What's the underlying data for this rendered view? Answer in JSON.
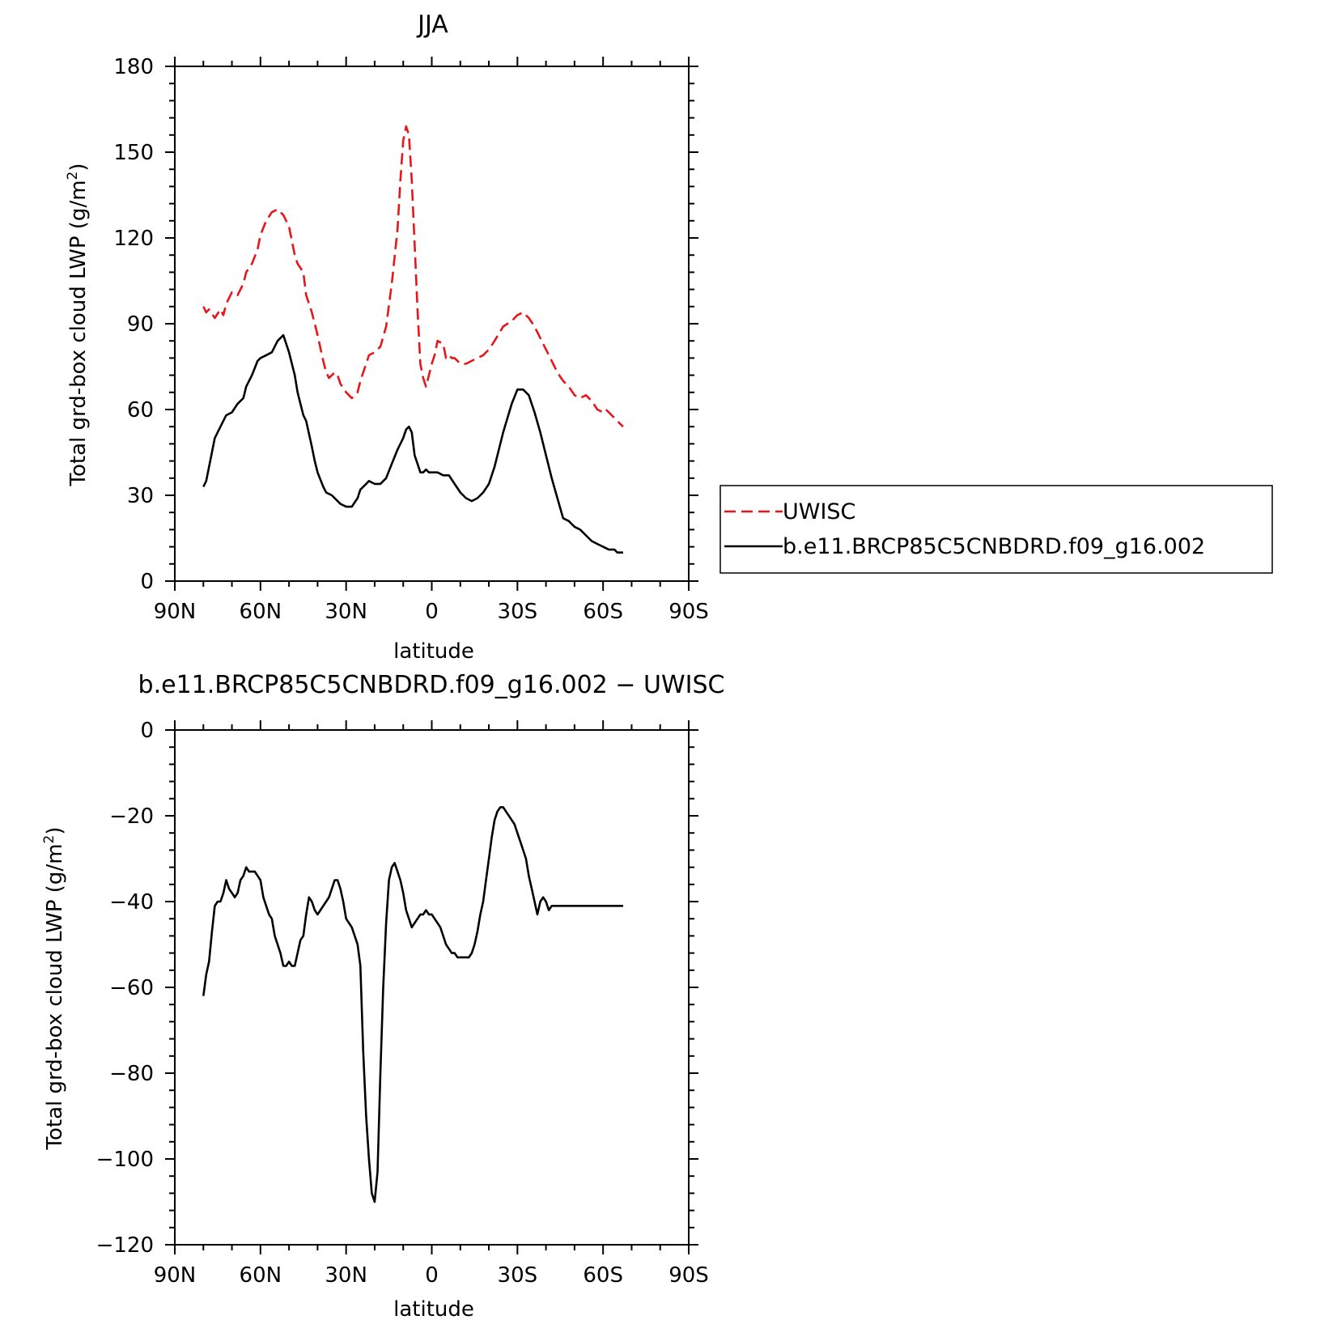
{
  "chart_data": [
    {
      "type": "line",
      "title": "JJA",
      "xlabel": "latitude",
      "ylabel": "Total grd-box cloud LWP (g/m²)",
      "xlim": [
        90,
        -90
      ],
      "ylim": [
        0,
        180
      ],
      "xticks": [
        90,
        60,
        30,
        0,
        -30,
        -60,
        -90
      ],
      "xtick_labels": [
        "90N",
        "60N",
        "30N",
        "0",
        "30S",
        "60S",
        "90S"
      ],
      "yticks": [
        0,
        30,
        60,
        90,
        120,
        150,
        180
      ],
      "ytick_labels": [
        "0",
        "30",
        "60",
        "90",
        "120",
        "150",
        "180"
      ],
      "legend_position": "right",
      "series": [
        {
          "name": "UWISC",
          "color": "#e8161b",
          "dash": "dashed",
          "x": [
            80,
            79,
            78,
            76,
            74,
            73,
            72,
            70,
            68,
            66,
            65,
            63,
            61,
            60,
            58,
            56,
            54,
            52,
            50,
            48,
            47,
            45,
            44,
            42,
            41,
            40,
            38,
            37,
            36,
            34,
            33,
            32,
            30,
            28,
            26,
            25,
            23,
            22,
            20,
            18,
            16,
            14,
            12,
            11,
            10,
            9,
            8,
            7,
            6,
            5,
            4,
            3,
            2,
            1,
            0,
            -1,
            -2,
            -4,
            -5,
            -6,
            -7,
            -8,
            -9,
            -10,
            -11,
            -12,
            -14,
            -16,
            -18,
            -20,
            -22,
            -25,
            -28,
            -30,
            -32,
            -34,
            -36,
            -38,
            -40,
            -42,
            -44,
            -46,
            -48,
            -50,
            -52,
            -54,
            -56,
            -58,
            -60,
            -61,
            -63,
            -64,
            -65,
            -66,
            -67
          ],
          "y": [
            96,
            94,
            95,
            92,
            95,
            93,
            97,
            101,
            100,
            104,
            108,
            111,
            116,
            121,
            126,
            129,
            130,
            128,
            124,
            114,
            111,
            108,
            100,
            94,
            90,
            86,
            77,
            73,
            71,
            73,
            72,
            69,
            66,
            64,
            66,
            70,
            76,
            79,
            80,
            82,
            89,
            104,
            123,
            140,
            154,
            159,
            156,
            140,
            118,
            95,
            76,
            71,
            68,
            72,
            76,
            79,
            84,
            83,
            78,
            79,
            78,
            78,
            77,
            76,
            76,
            76,
            77,
            78,
            79,
            81,
            84,
            89,
            91,
            93,
            94,
            92,
            89,
            85,
            81,
            77,
            73,
            70,
            68,
            65,
            64,
            65,
            63,
            60,
            59,
            60,
            58,
            57,
            56,
            55,
            54
          ],
          "_note": ""
        },
        {
          "name": "b.e11.BRCP85C5CNBDRD.f09_g16.002",
          "color": "#000000",
          "dash": "solid",
          "x": [
            80,
            79,
            78,
            76,
            74,
            72,
            70,
            68,
            66,
            65,
            63,
            61,
            60,
            58,
            56,
            54,
            52,
            51,
            50,
            48,
            47,
            45,
            44,
            42,
            41,
            40,
            38,
            37,
            35,
            33,
            32,
            30,
            28,
            26,
            25,
            23,
            22,
            20,
            18,
            16,
            14,
            12,
            11,
            10,
            9,
            8,
            7,
            6,
            5,
            4,
            3,
            2,
            1,
            0,
            -2,
            -4,
            -5,
            -6,
            -8,
            -10,
            -12,
            -14,
            -16,
            -18,
            -20,
            -22,
            -25,
            -28,
            -30,
            -32,
            -34,
            -36,
            -38,
            -40,
            -42,
            -44,
            -46,
            -48,
            -50,
            -52,
            -54,
            -56,
            -58,
            -60,
            -62,
            -63,
            -64,
            -65,
            -66,
            -67
          ],
          "y": [
            33,
            35,
            40,
            50,
            54,
            58,
            59,
            62,
            64,
            68,
            72,
            77,
            78,
            79,
            80,
            84,
            86,
            83,
            80,
            72,
            66,
            58,
            56,
            47,
            42,
            38,
            33,
            31,
            30,
            28,
            27,
            26,
            26,
            29,
            32,
            34,
            35,
            34,
            34,
            36,
            41,
            46,
            48,
            50,
            53,
            54,
            52,
            44,
            41,
            38,
            38,
            39,
            38,
            38,
            38,
            37,
            37,
            37,
            34,
            31,
            29,
            28,
            29,
            31,
            34,
            40,
            52,
            62,
            67,
            67,
            65,
            59,
            52,
            44,
            36,
            29,
            22,
            21,
            19,
            18,
            16,
            14,
            13,
            12,
            11,
            11,
            11,
            10,
            10,
            10
          ]
        }
      ]
    },
    {
      "type": "line",
      "title": "b.e11.BRCP85C5CNBDRD.f09_g16.002  −  UWISC",
      "xlabel": "latitude",
      "ylabel": "Total grd-box cloud LWP (g/m²)",
      "xlim": [
        90,
        -90
      ],
      "ylim": [
        -120,
        0
      ],
      "xticks": [
        90,
        60,
        30,
        0,
        -30,
        -60,
        -90
      ],
      "xtick_labels": [
        "90N",
        "60N",
        "30N",
        "0",
        "30S",
        "60S",
        "90S"
      ],
      "yticks": [
        0,
        -20,
        -40,
        -60,
        -80,
        -100,
        -120
      ],
      "ytick_labels": [
        "0",
        "−20",
        "−40",
        "−60",
        "−80",
        "−100",
        "−120"
      ],
      "series": [
        {
          "color": "#000000",
          "dash": "solid",
          "x": [
            80,
            79,
            78,
            77,
            76,
            75,
            74,
            73,
            72,
            71,
            70,
            69,
            68,
            67,
            66,
            65,
            64,
            63,
            62,
            61,
            60,
            59,
            58,
            57,
            56,
            55,
            54,
            53,
            52,
            51,
            50,
            49,
            48,
            47,
            46,
            45,
            44,
            43,
            42,
            41,
            40,
            39,
            38,
            37,
            36,
            35,
            34,
            33,
            32,
            31,
            30,
            29,
            28,
            27,
            26,
            25,
            24,
            23,
            22,
            21,
            20,
            19,
            18,
            17,
            16,
            15,
            14,
            13,
            12,
            11,
            10,
            9,
            8,
            7,
            6,
            5,
            4,
            3,
            2,
            1,
            0,
            -1,
            -2,
            -3,
            -4,
            -5,
            -6,
            -7,
            -8,
            -9,
            -10,
            -11,
            -12,
            -13,
            -14,
            -15,
            -16,
            -17,
            -18,
            -19,
            -20,
            -21,
            -22,
            -23,
            -24,
            -25,
            -26,
            -27,
            -28,
            -29,
            -30,
            -31,
            -32,
            -33,
            -34,
            -35,
            -36,
            -37,
            -38,
            -39,
            -40,
            -41,
            -42,
            -43,
            -44,
            -45,
            -46,
            -47,
            -48,
            -49,
            -50,
            -51,
            -52,
            -53,
            -54,
            -55,
            -56,
            -57,
            -58,
            -59,
            -60,
            -61,
            -62,
            -63,
            -64,
            -65,
            -66,
            -67
          ],
          "y": [
            -62,
            -57,
            -54,
            -47,
            -41,
            -40,
            -40,
            -38,
            -35,
            -37,
            -38,
            -39,
            -38,
            -35,
            -34,
            -32,
            -33,
            -33,
            -33,
            -34,
            -35,
            -39,
            -41,
            -43,
            -44,
            -48,
            -50,
            -52,
            -55,
            -55,
            -54,
            -55,
            -55,
            -52,
            -49,
            -48,
            -43,
            -39,
            -40,
            -42,
            -43,
            -42,
            -41,
            -40,
            -39,
            -37,
            -35,
            -35,
            -37,
            -40,
            -44,
            -45,
            -46,
            -48,
            -50,
            -55,
            -75,
            -90,
            -100,
            -108,
            -110,
            -103,
            -80,
            -60,
            -45,
            -35,
            -32,
            -31,
            -33,
            -35,
            -38,
            -42,
            -44,
            -46,
            -45,
            -44,
            -43,
            -43,
            -42,
            -43,
            -43,
            -44,
            -45,
            -46,
            -48,
            -50,
            -51,
            -52,
            -52,
            -53,
            -53,
            -53,
            -53,
            -53,
            -52,
            -50,
            -47,
            -43,
            -40,
            -35,
            -30,
            -25,
            -21,
            -19,
            -18,
            -18,
            -19,
            -20,
            -21,
            -22,
            -24,
            -26,
            -28,
            -30,
            -34,
            -37,
            -40,
            -43,
            -40,
            -39,
            -40,
            -42,
            -41,
            -41,
            -41,
            -41,
            -41,
            -41,
            -41,
            -41,
            -41,
            -41,
            -41,
            -41,
            -41,
            -41,
            -41,
            -41,
            -41,
            -41,
            -41,
            -41,
            -41,
            -41,
            -41,
            -41,
            -41,
            -41
          ]
        }
      ]
    }
  ]
}
